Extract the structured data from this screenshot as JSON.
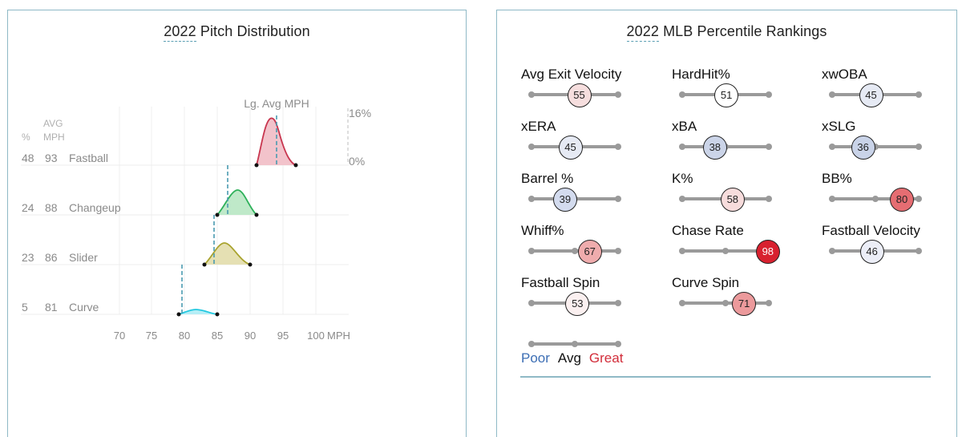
{
  "pitch_panel": {
    "title_year": "2022",
    "title_rest": " Pitch Distribution",
    "lg_avg_label": "Lg. Avg MPH",
    "header_pct": "%",
    "header_avg_line1": "AVG",
    "header_avg_line2": "MPH",
    "scale_top": "16%",
    "scale_bottom": "0%",
    "x_ticks": [
      "70",
      "75",
      "80",
      "85",
      "90",
      "95",
      "100"
    ],
    "x_unit": "MPH",
    "pitches": [
      {
        "pct": "48",
        "mph": "93",
        "name": "Fastball",
        "color": "#d22d49",
        "fill": "#f2c3cb"
      },
      {
        "pct": "24",
        "mph": "88",
        "name": "Changeup",
        "color": "#1db053",
        "fill": "#bfe9c9"
      },
      {
        "pct": "23",
        "mph": "86",
        "name": "Slider",
        "color": "#a6a229",
        "fill": "#e5e0b3"
      },
      {
        "pct": "5",
        "mph": "81",
        "name": "Curve",
        "color": "#00d1ed",
        "fill": "#b5eef6"
      }
    ]
  },
  "chart_data": [
    {
      "type": "area",
      "title": "2022 Pitch Distribution",
      "xlabel": "MPH",
      "ylabel": "",
      "xlim": [
        70,
        100
      ],
      "x_ticks": [
        70,
        75,
        80,
        85,
        90,
        95,
        100
      ],
      "density_scale": [
        "0%",
        "16%"
      ],
      "annotation": "Lg. Avg MPH (dashed lines)",
      "series": [
        {
          "name": "Fastball",
          "usage_pct": 48,
          "avg_mph": 93,
          "range_mph": [
            91,
            97
          ],
          "peak_mph": 93.3,
          "peak_density_pct": 15,
          "league_avg_mph": 94.0
        },
        {
          "name": "Changeup",
          "usage_pct": 24,
          "avg_mph": 88,
          "range_mph": [
            85,
            91
          ],
          "peak_mph": 88,
          "peak_density_pct": 8,
          "league_avg_mph": 86.6
        },
        {
          "name": "Slider",
          "usage_pct": 23,
          "avg_mph": 86,
          "range_mph": [
            83,
            90
          ],
          "peak_mph": 86,
          "peak_density_pct": 7.5,
          "league_avg_mph": 84.5
        },
        {
          "name": "Curve",
          "usage_pct": 5,
          "avg_mph": 81,
          "range_mph": [
            79,
            85
          ],
          "peak_mph": 81.5,
          "peak_density_pct": 1.5,
          "league_avg_mph": 79.6
        }
      ]
    },
    {
      "type": "scatter",
      "title": "2022 MLB Percentile Rankings",
      "categories": [
        "Avg Exit Velocity",
        "HardHit%",
        "xwOBA",
        "xERA",
        "xBA",
        "xSLG",
        "Barrel %",
        "K%",
        "BB%",
        "Whiff%",
        "Chase Rate",
        "Fastball Velocity",
        "Fastball Spin",
        "Curve Spin"
      ],
      "values": [
        55,
        51,
        45,
        45,
        38,
        36,
        39,
        58,
        80,
        67,
        98,
        46,
        53,
        71
      ],
      "xlim": [
        0,
        100
      ],
      "legend": [
        "Poor",
        "Avg",
        "Great"
      ]
    }
  ],
  "percentile_panel": {
    "title_year": "2022",
    "title_rest": " MLB Percentile Rankings",
    "metrics": [
      {
        "label": "Avg Exit Velocity",
        "value": "55",
        "bg": "#f6dede",
        "fg": "#222"
      },
      {
        "label": "HardHit%",
        "value": "51",
        "bg": "#ffffff",
        "fg": "#222"
      },
      {
        "label": "xwOBA",
        "value": "45",
        "bg": "#e6eaf4",
        "fg": "#222"
      },
      {
        "label": "xERA",
        "value": "45",
        "bg": "#e6eaf4",
        "fg": "#222"
      },
      {
        "label": "xBA",
        "value": "38",
        "bg": "#cbd4e8",
        "fg": "#222"
      },
      {
        "label": "xSLG",
        "value": "36",
        "bg": "#c9d3e8",
        "fg": "#222"
      },
      {
        "label": "Barrel %",
        "value": "39",
        "bg": "#d3dbee",
        "fg": "#222"
      },
      {
        "label": "K%",
        "value": "58",
        "bg": "#f7dcdc",
        "fg": "#222"
      },
      {
        "label": "BB%",
        "value": "80",
        "bg": "#e66d72",
        "fg": "#222"
      },
      {
        "label": "Whiff%",
        "value": "67",
        "bg": "#efacad",
        "fg": "#222"
      },
      {
        "label": "Chase Rate",
        "value": "98",
        "bg": "#d8212f",
        "fg": "#ffffff"
      },
      {
        "label": "Fastball Velocity",
        "value": "46",
        "bg": "#eceef7",
        "fg": "#222"
      },
      {
        "label": "Fastball Spin",
        "value": "53",
        "bg": "#fbf0f0",
        "fg": "#222"
      },
      {
        "label": "Curve Spin",
        "value": "71",
        "bg": "#ec9a9c",
        "fg": "#222"
      }
    ],
    "legend": {
      "poor": "Poor",
      "poor_color": "#3c6eb4",
      "avg": "Avg",
      "avg_color": "#111111",
      "great": "Great",
      "great_color": "#d22d3a"
    }
  }
}
